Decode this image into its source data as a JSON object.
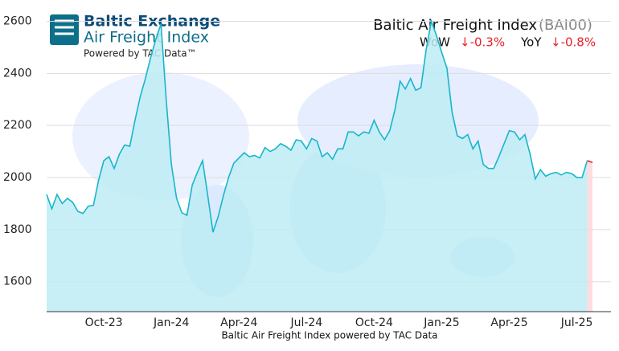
{
  "header": {
    "brand": "Baltic Exchange",
    "product": "Air Freight Index",
    "powered": "Powered by TAC Data™"
  },
  "chart_data": {
    "type": "line",
    "title": "Baltic Air Freight Index",
    "title_code": "(BAI00)",
    "wow_label": "WoW",
    "wow_value": "↓-0.3%",
    "yoy_label": "YoY",
    "yoy_value": "↓-0.8%",
    "x_label": "Baltic Air Freight Index powered by TAC Data",
    "categories": [
      null,
      null,
      null,
      null,
      null,
      null,
      null,
      null,
      null,
      null,
      null,
      "Oct-23",
      null,
      null,
      null,
      null,
      null,
      null,
      null,
      null,
      null,
      null,
      null,
      null,
      "Jan-24",
      null,
      null,
      null,
      null,
      null,
      null,
      null,
      null,
      null,
      null,
      null,
      null,
      "Apr-24",
      null,
      null,
      null,
      null,
      null,
      null,
      null,
      null,
      null,
      null,
      null,
      null,
      "Jul-24",
      null,
      null,
      null,
      null,
      null,
      null,
      null,
      null,
      null,
      null,
      null,
      null,
      "Oct-24",
      null,
      null,
      null,
      null,
      null,
      null,
      null,
      null,
      null,
      null,
      null,
      null,
      "Jan-25",
      null,
      null,
      null,
      null,
      null,
      null,
      null,
      null,
      null,
      null,
      null,
      null,
      "Apr-25",
      null,
      null,
      null,
      null,
      null,
      null,
      null,
      null,
      null,
      null,
      null,
      null,
      "Jul-25",
      null,
      null,
      null
    ],
    "series": [
      {
        "color": "#17b6cb",
        "fill": "#bdecf3",
        "values": [
          1935,
          1880,
          1935,
          1900,
          1920,
          1905,
          1870,
          1862,
          1890,
          1893,
          1990,
          2065,
          2080,
          2035,
          2090,
          2125,
          2120,
          2220,
          2310,
          2380,
          2460,
          2530,
          2590,
          2300,
          2050,
          1920,
          1865,
          1855,
          1970,
          2020,
          2065,
          1930,
          1790,
          1850,
          1930,
          2000,
          2055,
          2075,
          2095,
          2080,
          2085,
          2075,
          2115,
          2100,
          2110,
          2130,
          2120,
          2105,
          2145,
          2140,
          2110,
          2150,
          2140,
          2080,
          2095,
          2070,
          2110,
          2110,
          2175,
          2175,
          2160,
          2175,
          2170,
          2220,
          2175,
          2145,
          2180,
          2260,
          2370,
          2340,
          2380,
          2335,
          2345,
          2490,
          2600,
          2545,
          2480,
          2420,
          2250,
          2160,
          2150,
          2165,
          2110,
          2140,
          2050,
          2035,
          2035,
          2080,
          2130,
          2180,
          2175,
          2145,
          2165,
          2090,
          1995,
          2030,
          2005,
          2015,
          2020,
          2010,
          2020,
          2015,
          2000,
          2000,
          2065,
          null
        ]
      },
      {
        "color": "#e8202a",
        "fill": "#ffd6da",
        "values": [
          null,
          null,
          null,
          null,
          null,
          null,
          null,
          null,
          null,
          null,
          null,
          null,
          null,
          null,
          null,
          null,
          null,
          null,
          null,
          null,
          null,
          null,
          null,
          null,
          null,
          null,
          null,
          null,
          null,
          null,
          null,
          null,
          null,
          null,
          null,
          null,
          null,
          null,
          null,
          null,
          null,
          null,
          null,
          null,
          null,
          null,
          null,
          null,
          null,
          null,
          null,
          null,
          null,
          null,
          null,
          null,
          null,
          null,
          null,
          null,
          null,
          null,
          null,
          null,
          null,
          null,
          null,
          null,
          null,
          null,
          null,
          null,
          null,
          null,
          null,
          null,
          null,
          null,
          null,
          null,
          null,
          null,
          null,
          null,
          null,
          null,
          null,
          null,
          null,
          null,
          null,
          null,
          null,
          null,
          null,
          null,
          null,
          null,
          null,
          null,
          null,
          null,
          null,
          null,
          2065,
          2058
        ]
      }
    ],
    "ylim": [
      1485,
      2620
    ],
    "yticks": [
      1600,
      1800,
      2000,
      2200,
      2400,
      2600
    ],
    "grid": true
  }
}
